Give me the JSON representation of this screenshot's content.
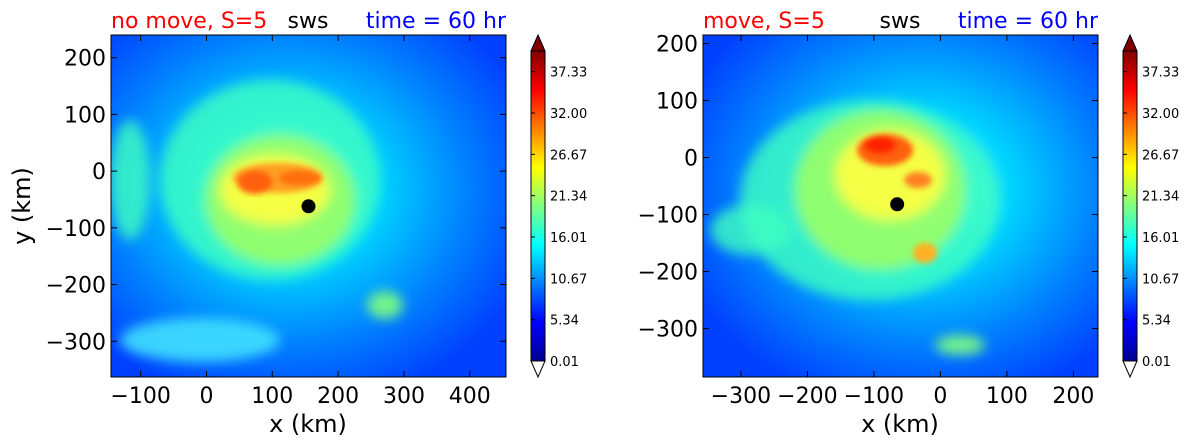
{
  "colors": {
    "title_left": "#ff0000",
    "title_center": "#000000",
    "title_right": "#0000ff",
    "marker": "#000000"
  },
  "chart_data": [
    {
      "type": "heatmap",
      "title_left": "no move, S=5",
      "title_center": "sws",
      "title_right": "time = 60 hr",
      "xlabel": "x (km)",
      "ylabel": "y (km)",
      "xlim": [
        -145,
        455
      ],
      "ylim": [
        -363,
        240
      ],
      "xticks": [
        -100,
        0,
        100,
        200,
        300,
        400
      ],
      "xtick_labels": [
        "−100",
        "0",
        "100",
        "200",
        "300",
        "400"
      ],
      "yticks": [
        200,
        100,
        0,
        -100,
        -200,
        -300
      ],
      "ytick_labels": [
        "200",
        "100",
        "0",
        "−100",
        "−200",
        "−300"
      ],
      "center_marker": {
        "x": 155,
        "y": -62
      },
      "wind_max": {
        "x": 100,
        "y": -15,
        "value": 29
      },
      "colorbar": {
        "min": 0.01,
        "max": 40.0,
        "ticks": [
          0.01,
          5.34,
          10.67,
          16.01,
          21.34,
          26.67,
          32.0,
          37.33
        ],
        "tick_labels": [
          "0.01",
          "5.34",
          "10.67",
          "16.01",
          "21.34",
          "26.67",
          "32.00",
          "37.33"
        ],
        "extend": "both"
      }
    },
    {
      "type": "heatmap",
      "title_left": "move, S=5",
      "title_center": "sws",
      "title_right": "time = 60 hr",
      "xlabel": "x (km)",
      "ylabel": "",
      "xlim": [
        -357,
        237
      ],
      "ylim": [
        -385,
        215
      ],
      "xticks": [
        -300,
        -200,
        -100,
        0,
        100,
        200
      ],
      "xtick_labels": [
        "−300",
        "−200",
        "−100",
        "0",
        "100",
        "200"
      ],
      "yticks": [
        200,
        100,
        0,
        -100,
        -200,
        -300
      ],
      "ytick_labels": [
        "200",
        "100",
        "0",
        "−100",
        "−200",
        "−300"
      ],
      "center_marker": {
        "x": -65,
        "y": -82
      },
      "wind_max": {
        "x": -90,
        "y": 15,
        "value": 34
      },
      "colorbar": {
        "min": 0.01,
        "max": 40.0,
        "ticks": [
          0.01,
          5.34,
          10.67,
          16.01,
          21.34,
          26.67,
          32.0,
          37.33
        ],
        "tick_labels": [
          "0.01",
          "5.34",
          "10.67",
          "16.01",
          "21.34",
          "26.67",
          "32.00",
          "37.33"
        ],
        "extend": "both"
      }
    }
  ]
}
